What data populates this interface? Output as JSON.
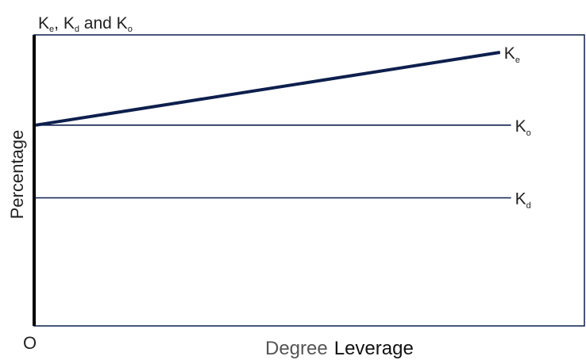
{
  "chart_data": {
    "type": "line",
    "title": {
      "parts": [
        {
          "base": "K",
          "sub": "e",
          "after": ", "
        },
        {
          "base": "K",
          "sub": "d",
          "after": " and "
        },
        {
          "base": "K",
          "sub": "o",
          "after": ""
        }
      ]
    },
    "ylabel": "Percentage",
    "xlabel_part1": "Degree",
    "xlabel_part2": "Leverage",
    "origin_label": "O",
    "xlim": [
      0,
      1
    ],
    "ylim": [
      0,
      1
    ],
    "grid": false,
    "series": [
      {
        "name_base": "K",
        "name_sub": "e",
        "x": [
          0,
          0.85
        ],
        "y": [
          0.69,
          0.94
        ],
        "stroke": "thick"
      },
      {
        "name_base": "K",
        "name_sub": "o",
        "x": [
          0,
          0.87
        ],
        "y": [
          0.69,
          0.69
        ],
        "stroke": "thin"
      },
      {
        "name_base": "K",
        "name_sub": "d",
        "x": [
          0,
          0.87
        ],
        "y": [
          0.44,
          0.44
        ],
        "stroke": "thin"
      }
    ],
    "colors": {
      "line": "#0d1f4d",
      "frame": "#0d1f4d",
      "y_axis": "#000000",
      "text": "#222222"
    }
  }
}
